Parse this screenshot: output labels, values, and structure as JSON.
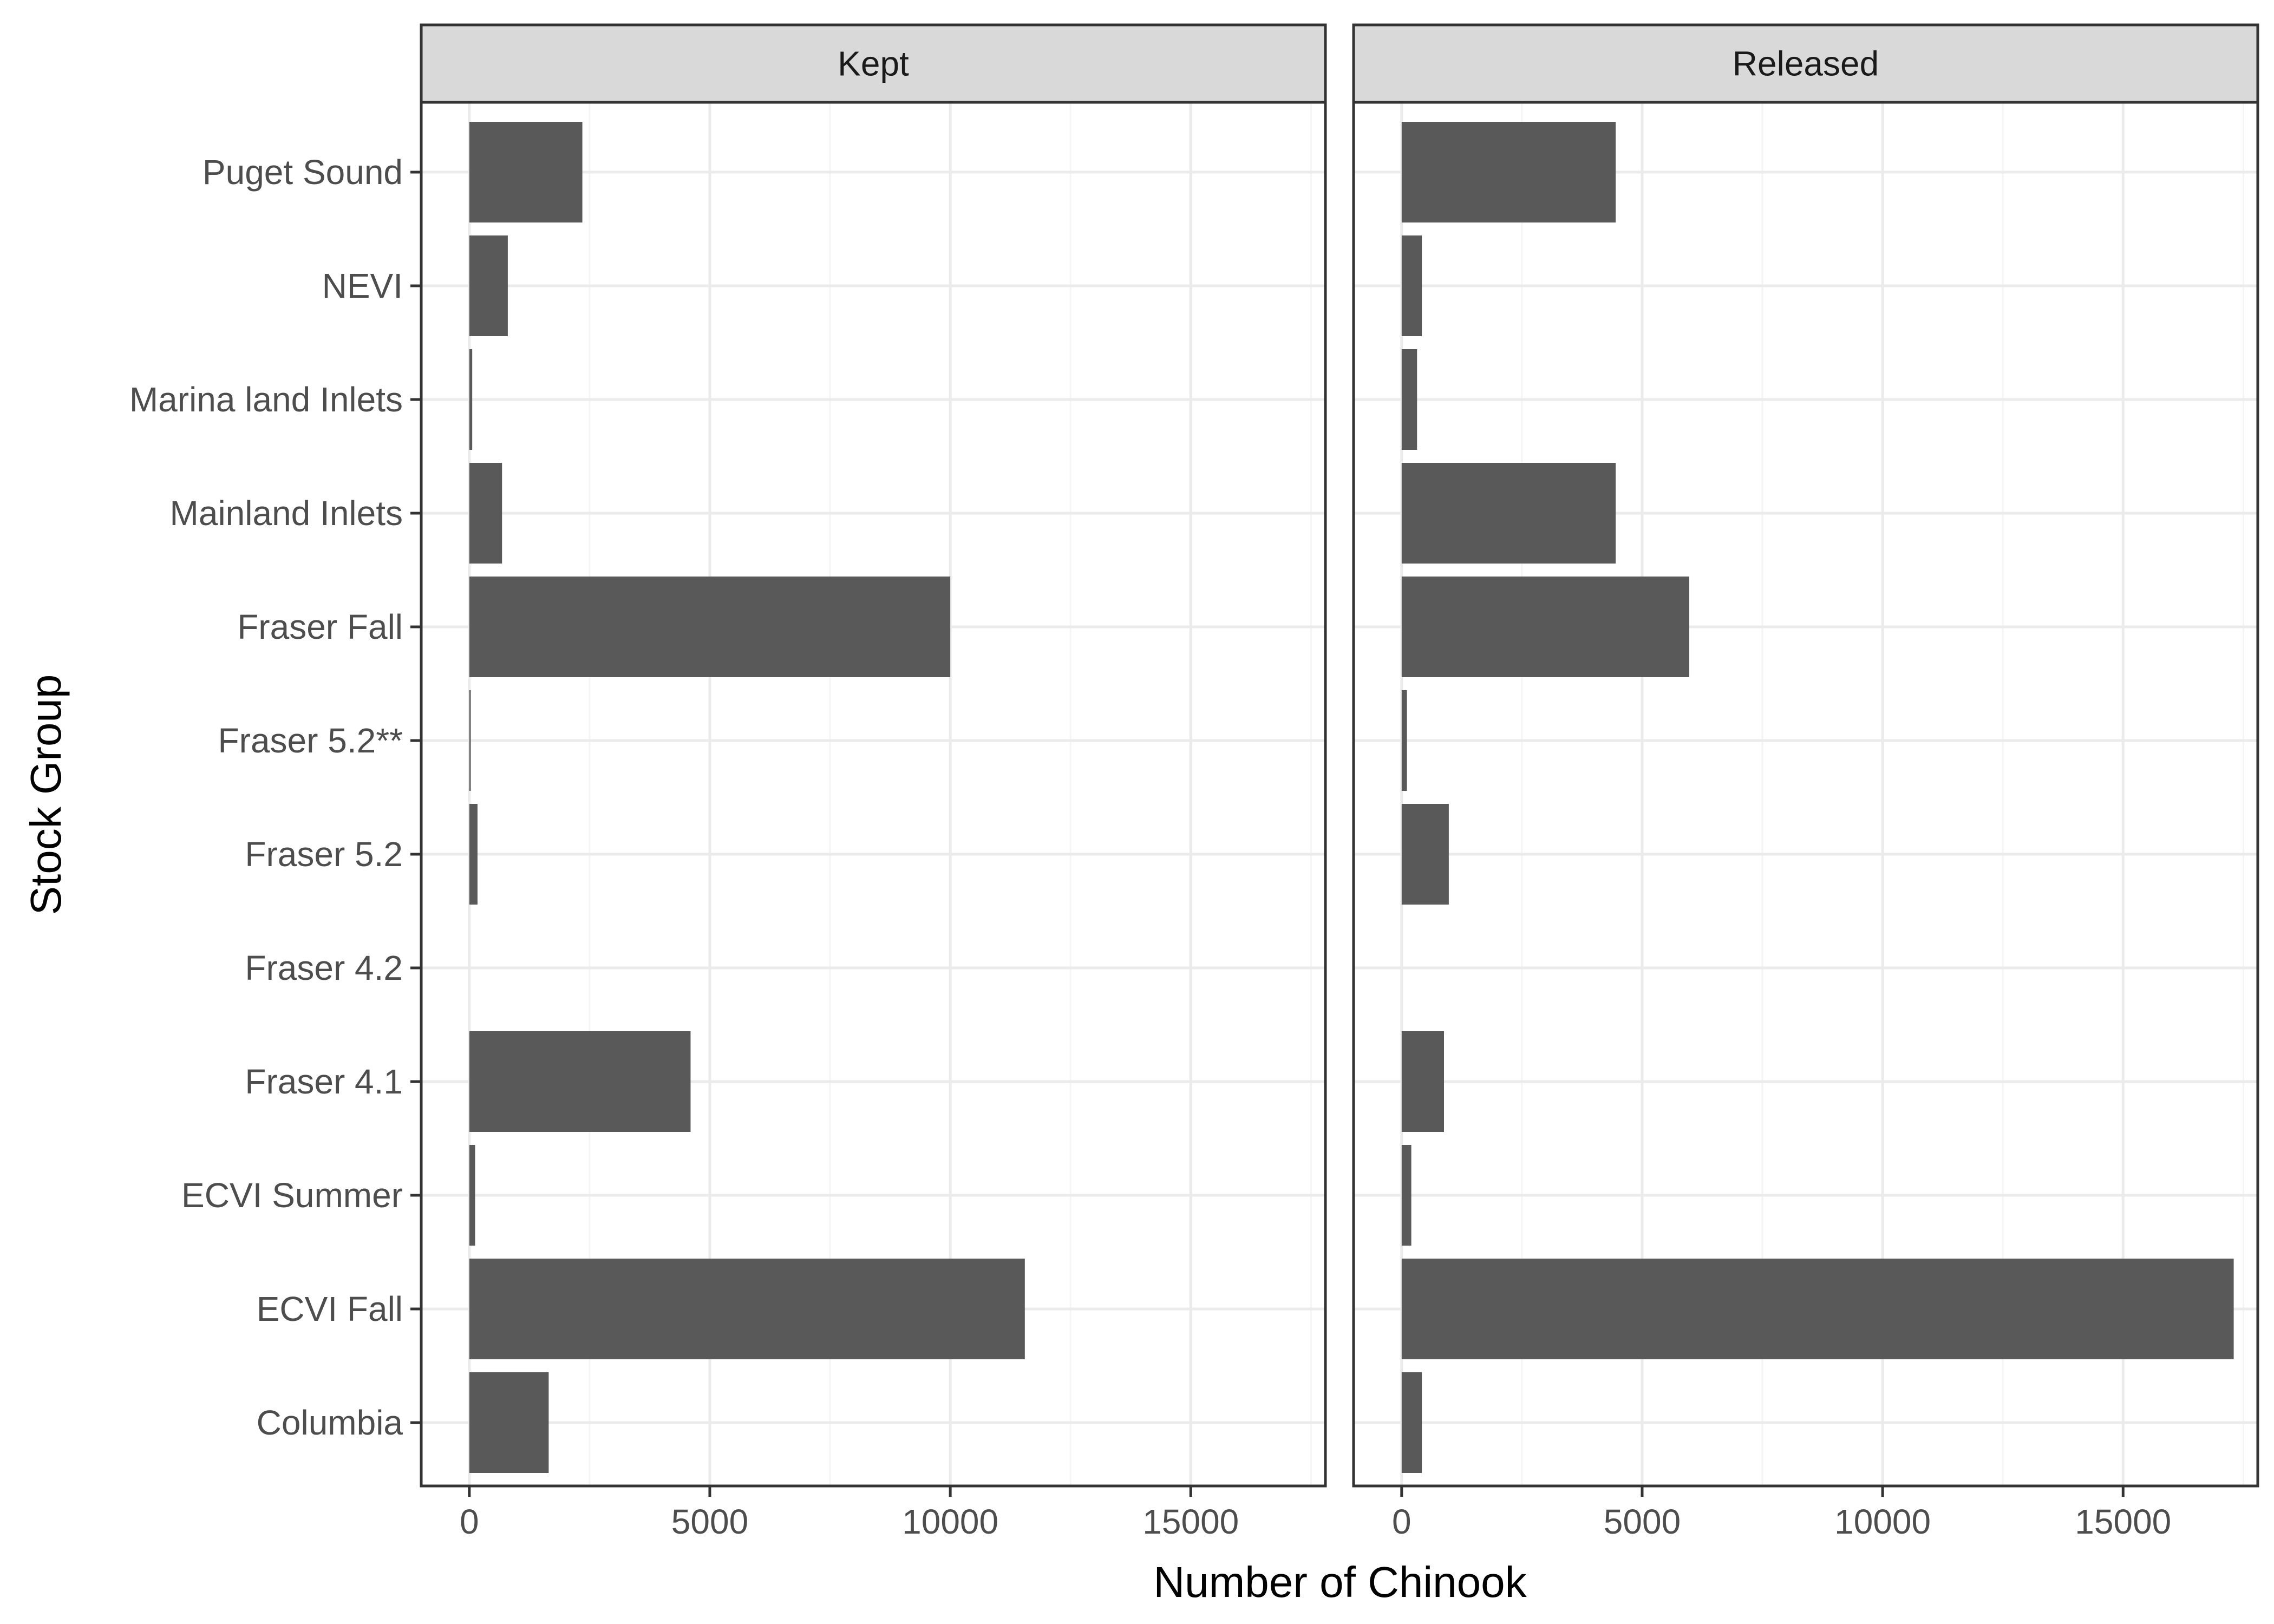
{
  "chart_data": {
    "type": "bar",
    "orientation": "horizontal",
    "xlabel": "Number of Chinook",
    "ylabel": "Stock Group",
    "xlim": [
      -1000,
      17800
    ],
    "xticks": [
      0,
      5000,
      10000,
      15000
    ],
    "xtick_labels": [
      "0",
      "5000",
      "10000",
      "15000"
    ],
    "grid": true,
    "categories": [
      "Puget Sound",
      "NEVI",
      "Marina land Inlets",
      "Mainland Inlets",
      "Fraser Fall",
      "Fraser 5.2**",
      "Fraser 5.2",
      "Fraser 4.2",
      "Fraser 4.1",
      "ECVI Summer",
      "ECVI Fall",
      "Columbia"
    ],
    "panels": [
      {
        "name": "Kept",
        "values": [
          2350,
          800,
          60,
          680,
          10000,
          30,
          170,
          0,
          4600,
          120,
          11550,
          1650
        ]
      },
      {
        "name": "Released",
        "values": [
          4450,
          420,
          320,
          4450,
          5980,
          110,
          980,
          0,
          880,
          200,
          17300,
          420
        ]
      }
    ],
    "colors": {
      "bar": "#595959",
      "strip_fill": "#d9d9d9",
      "grid_major": "#ebebeb",
      "grid_minor": "#f5f5f5",
      "border": "#333333"
    }
  }
}
